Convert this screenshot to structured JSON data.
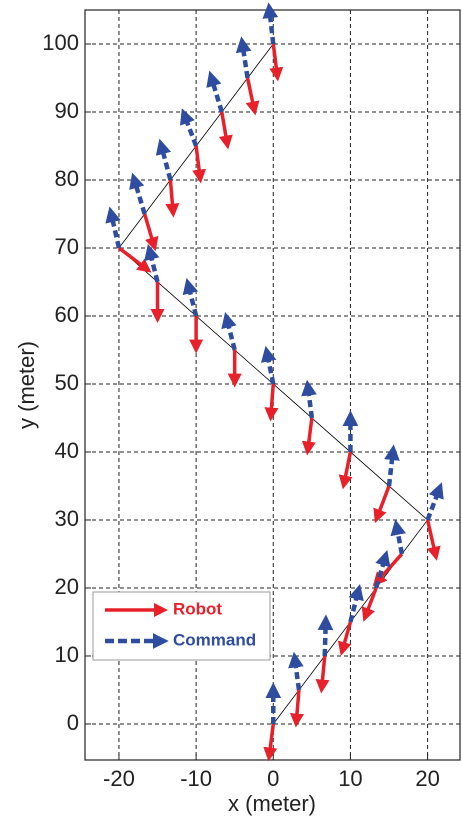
{
  "chart_data": {
    "type": "quiver",
    "xlabel": "x (meter)",
    "ylabel": "y (meter)",
    "xlim": [
      -24.4,
      24.2
    ],
    "ylim": [
      -5.3,
      105
    ],
    "xticks": [
      -20,
      -10,
      0,
      10,
      20
    ],
    "yticks": [
      0,
      10,
      20,
      30,
      40,
      50,
      60,
      70,
      80,
      90,
      100
    ],
    "grid": true,
    "legend": "lower left",
    "path": {
      "color": "#000000",
      "x": [
        0,
        20,
        -20,
        0
      ],
      "y": [
        0,
        30,
        70,
        100
      ]
    },
    "x": [
      0,
      3.33,
      6.67,
      10,
      13.33,
      16.67,
      20,
      15,
      10,
      5,
      0,
      -5,
      -10,
      -15,
      -20,
      -16.67,
      -13.33,
      -10,
      -6.67,
      -3.33,
      0
    ],
    "y": [
      0,
      5,
      10,
      15,
      20,
      25,
      30,
      35,
      40,
      45,
      50,
      55,
      60,
      65,
      70,
      75,
      80,
      85,
      90,
      95,
      100
    ],
    "series": [
      {
        "name": "Robot",
        "color": "#e8202a",
        "x_end": [
          -0.5,
          3,
          6.3,
          9,
          12,
          13.5,
          21,
          13.5,
          9.2,
          4.5,
          -0.3,
          -5,
          -10,
          -15,
          -16.5,
          -15.5,
          -13,
          -9.5,
          -6,
          -2.5,
          0.5
        ],
        "y_end": [
          -4.5,
          0.5,
          5.5,
          11,
          16,
          21,
          25,
          30.5,
          35.5,
          40.5,
          45.5,
          50.5,
          55.5,
          60,
          67,
          70.5,
          75.5,
          80.5,
          85.5,
          90.5,
          95.5
        ]
      },
      {
        "name": "Command",
        "color": "#2e4da0",
        "x_end": [
          0,
          2.8,
          6.8,
          11,
          14.5,
          16,
          21.5,
          15.5,
          10,
          4.5,
          -0.8,
          -6,
          -11,
          -16,
          -21,
          -18,
          -14.5,
          -11.5,
          -8,
          -4,
          -0.5
        ],
        "y_end": [
          5,
          9.5,
          15,
          19.5,
          24.5,
          29,
          34.5,
          40,
          45,
          49.5,
          54.5,
          59.5,
          64.5,
          69.5,
          75,
          80,
          85,
          89.5,
          95,
          100,
          105
        ]
      }
    ]
  }
}
